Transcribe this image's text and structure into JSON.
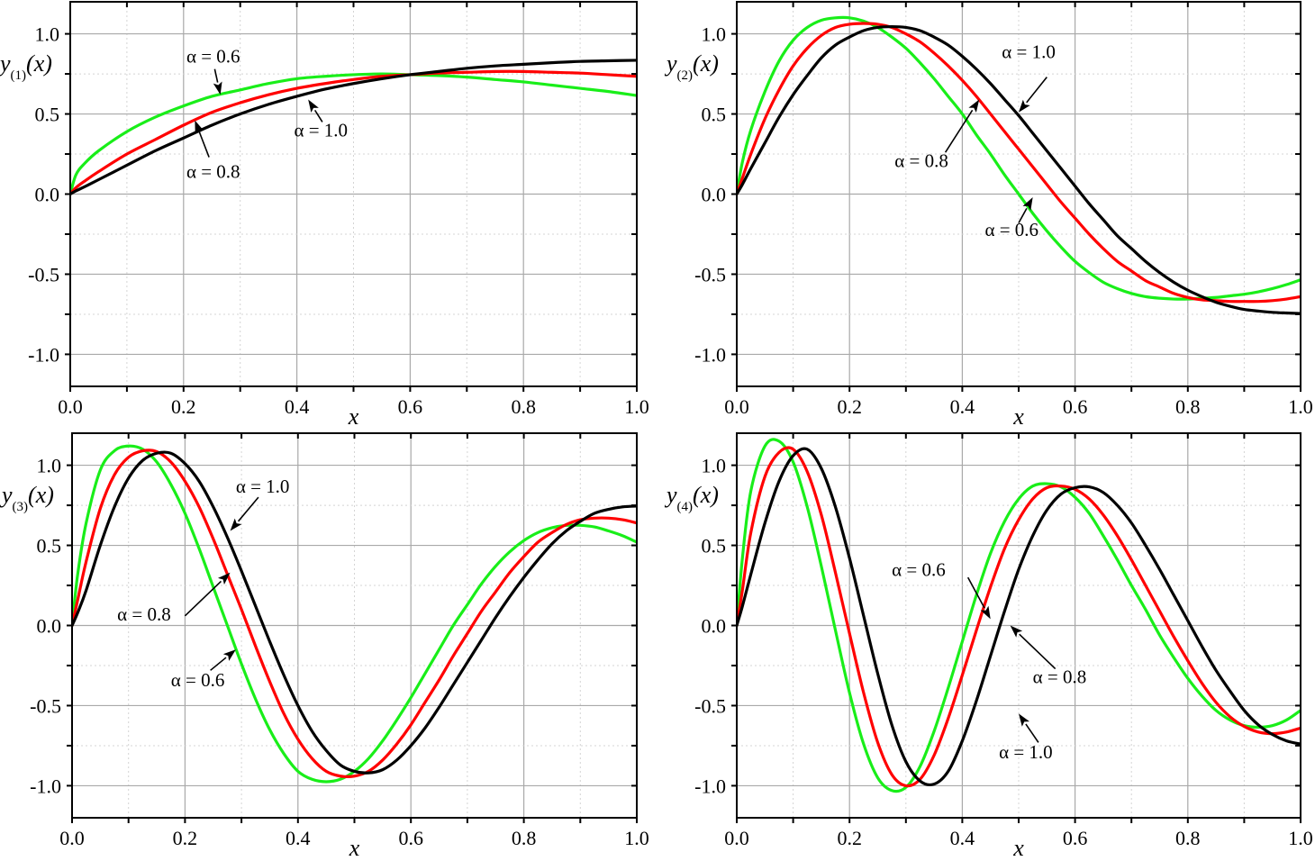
{
  "figure": {
    "series_colors": {
      "alpha_0.6": "#19ee19",
      "alpha_0.8": "#ff0000",
      "alpha_1.0": "#000000"
    },
    "grid_colors": {
      "major": "#a9a9a9",
      "minor": "#d4d4d4"
    }
  },
  "chart_data": [
    {
      "id": "panel1",
      "type": "line",
      "title": "",
      "ylabel": "y(1)(x)",
      "ylabel_main": "y",
      "ylabel_sub": "(1)",
      "ylabel_tail": "(x)",
      "xlabel": "x",
      "xlim": [
        0.0,
        1.0
      ],
      "ylim": [
        -1.2,
        1.2
      ],
      "xticks": [
        "0.0",
        "0.2",
        "0.4",
        "0.6",
        "0.8",
        "1.0"
      ],
      "yticks": [
        "1.0",
        "0.5",
        "0.0",
        "-0.5",
        "-1.0"
      ],
      "grid": true,
      "x": [
        0,
        0.01,
        0.025,
        0.05,
        0.1,
        0.15,
        0.2,
        0.25,
        0.3,
        0.35,
        0.4,
        0.45,
        0.5,
        0.55,
        0.6,
        0.65,
        0.7,
        0.75,
        0.8,
        0.85,
        0.9,
        0.95,
        1.0
      ],
      "series": [
        {
          "name": "α = 0.6",
          "color": "#19ee19",
          "values": [
            0,
            0.12,
            0.19,
            0.27,
            0.39,
            0.48,
            0.55,
            0.61,
            0.65,
            0.69,
            0.72,
            0.735,
            0.745,
            0.75,
            0.745,
            0.74,
            0.73,
            0.715,
            0.7,
            0.68,
            0.66,
            0.64,
            0.615
          ]
        },
        {
          "name": "α = 0.8",
          "color": "#ff0000",
          "values": [
            0,
            0.04,
            0.08,
            0.14,
            0.25,
            0.34,
            0.43,
            0.51,
            0.57,
            0.62,
            0.66,
            0.69,
            0.715,
            0.735,
            0.745,
            0.755,
            0.76,
            0.765,
            0.765,
            0.76,
            0.755,
            0.745,
            0.735
          ]
        },
        {
          "name": "α = 1.0",
          "color": "#000000",
          "values": [
            0,
            0.02,
            0.045,
            0.09,
            0.18,
            0.27,
            0.35,
            0.43,
            0.5,
            0.56,
            0.61,
            0.655,
            0.69,
            0.72,
            0.745,
            0.765,
            0.785,
            0.8,
            0.81,
            0.82,
            0.828,
            0.832,
            0.835
          ]
        }
      ],
      "annotations": [
        {
          "text": "α = 0.6",
          "label_x": 0.205,
          "label_y": 0.82,
          "arrow_from": [
            0.255,
            0.78
          ],
          "arrow_to": [
            0.265,
            0.62
          ]
        },
        {
          "text": "α = 0.8",
          "label_x": 0.205,
          "label_y": 0.1,
          "arrow_from": [
            0.245,
            0.23
          ],
          "arrow_to": [
            0.22,
            0.46
          ]
        },
        {
          "text": "α = 1.0",
          "label_x": 0.395,
          "label_y": 0.36,
          "arrow_from": [
            0.445,
            0.45
          ],
          "arrow_to": [
            0.42,
            0.59
          ]
        }
      ]
    },
    {
      "id": "panel2",
      "type": "line",
      "title": "",
      "ylabel": "y(2)(x)",
      "ylabel_main": "y",
      "ylabel_sub": "(2)",
      "ylabel_tail": "(x)",
      "xlabel": "x",
      "xlim": [
        0.0,
        1.0
      ],
      "ylim": [
        -1.2,
        1.2
      ],
      "xticks": [
        "0.0",
        "0.2",
        "0.4",
        "0.6",
        "0.8",
        "1.0"
      ],
      "yticks": [
        "1.0",
        "0.5",
        "0.0",
        "-0.5",
        "-1.0"
      ],
      "grid": true,
      "x": [
        0,
        0.01,
        0.025,
        0.05,
        0.075,
        0.1,
        0.125,
        0.15,
        0.175,
        0.2,
        0.225,
        0.25,
        0.275,
        0.3,
        0.325,
        0.35,
        0.375,
        0.4,
        0.425,
        0.45,
        0.475,
        0.5,
        0.525,
        0.55,
        0.575,
        0.6,
        0.625,
        0.65,
        0.675,
        0.7,
        0.725,
        0.75,
        0.775,
        0.8,
        0.825,
        0.85,
        0.875,
        0.9,
        0.925,
        0.95,
        0.975,
        1.0
      ],
      "series": [
        {
          "name": "α = 0.6",
          "color": "#19ee19",
          "values": [
            0,
            0.2,
            0.4,
            0.64,
            0.83,
            0.96,
            1.04,
            1.085,
            1.1,
            1.1,
            1.08,
            1.04,
            0.98,
            0.91,
            0.82,
            0.72,
            0.61,
            0.5,
            0.37,
            0.25,
            0.12,
            0.0,
            -0.12,
            -0.23,
            -0.33,
            -0.42,
            -0.49,
            -0.55,
            -0.59,
            -0.62,
            -0.64,
            -0.65,
            -0.655,
            -0.655,
            -0.65,
            -0.645,
            -0.635,
            -0.625,
            -0.61,
            -0.59,
            -0.565,
            -0.535
          ]
        },
        {
          "name": "α = 0.8",
          "color": "#ff0000",
          "values": [
            0,
            0.1,
            0.25,
            0.47,
            0.65,
            0.8,
            0.91,
            0.99,
            1.04,
            1.06,
            1.065,
            1.06,
            1.04,
            1.0,
            0.95,
            0.88,
            0.8,
            0.71,
            0.61,
            0.5,
            0.39,
            0.28,
            0.17,
            0.06,
            -0.05,
            -0.15,
            -0.25,
            -0.34,
            -0.42,
            -0.48,
            -0.54,
            -0.58,
            -0.62,
            -0.645,
            -0.66,
            -0.665,
            -0.67,
            -0.67,
            -0.67,
            -0.665,
            -0.655,
            -0.64
          ]
        },
        {
          "name": "α = 1.0",
          "color": "#000000",
          "values": [
            0,
            0.06,
            0.16,
            0.32,
            0.48,
            0.62,
            0.74,
            0.85,
            0.93,
            0.98,
            1.02,
            1.04,
            1.045,
            1.04,
            1.02,
            0.98,
            0.93,
            0.86,
            0.78,
            0.69,
            0.59,
            0.49,
            0.38,
            0.27,
            0.16,
            0.05,
            -0.06,
            -0.16,
            -0.26,
            -0.34,
            -0.42,
            -0.49,
            -0.55,
            -0.6,
            -0.64,
            -0.675,
            -0.7,
            -0.72,
            -0.73,
            -0.738,
            -0.742,
            -0.745
          ]
        }
      ],
      "annotations": [
        {
          "text": "α = 1.0",
          "label_x": 0.47,
          "label_y": 0.85,
          "arrow_from": [
            0.55,
            0.73
          ],
          "arrow_to": [
            0.5,
            0.51
          ]
        },
        {
          "text": "α = 0.8",
          "label_x": 0.28,
          "label_y": 0.17,
          "arrow_from": [
            0.37,
            0.26
          ],
          "arrow_to": [
            0.43,
            0.59
          ]
        },
        {
          "text": "α = 0.6",
          "label_x": 0.44,
          "label_y": -0.26,
          "arrow_from": [
            0.5,
            -0.18
          ],
          "arrow_to": [
            0.525,
            -0.02
          ]
        }
      ]
    },
    {
      "id": "panel3",
      "type": "line",
      "title": "",
      "ylabel": "y(3)(x)",
      "ylabel_main": "y",
      "ylabel_sub": "(3)",
      "ylabel_tail": "(x)",
      "xlabel": "x",
      "xlim": [
        0.0,
        1.0
      ],
      "ylim": [
        -1.2,
        1.2
      ],
      "xticks": [
        "0.0",
        "0.2",
        "0.4",
        "0.6",
        "0.8",
        "1.0"
      ],
      "yticks": [
        "1.0",
        "0.5",
        "0.0",
        "-0.5",
        "-1.0"
      ],
      "grid": true,
      "x": [
        0,
        0.01,
        0.025,
        0.05,
        0.075,
        0.1,
        0.125,
        0.15,
        0.175,
        0.2,
        0.225,
        0.25,
        0.275,
        0.3,
        0.325,
        0.35,
        0.375,
        0.4,
        0.425,
        0.45,
        0.475,
        0.5,
        0.525,
        0.55,
        0.575,
        0.6,
        0.625,
        0.65,
        0.675,
        0.7,
        0.725,
        0.75,
        0.775,
        0.8,
        0.825,
        0.85,
        0.875,
        0.9,
        0.925,
        0.95,
        0.975,
        1.0
      ],
      "series": [
        {
          "name": "α = 0.6",
          "color": "#19ee19",
          "values": [
            0,
            0.32,
            0.64,
            0.97,
            1.09,
            1.12,
            1.1,
            1.02,
            0.88,
            0.7,
            0.48,
            0.24,
            0.0,
            -0.24,
            -0.46,
            -0.65,
            -0.8,
            -0.91,
            -0.96,
            -0.975,
            -0.96,
            -0.91,
            -0.83,
            -0.72,
            -0.59,
            -0.45,
            -0.3,
            -0.15,
            0.0,
            0.13,
            0.26,
            0.37,
            0.46,
            0.53,
            0.58,
            0.61,
            0.625,
            0.625,
            0.615,
            0.59,
            0.56,
            0.52
          ]
        },
        {
          "name": "α = 0.8",
          "color": "#ff0000",
          "values": [
            0,
            0.16,
            0.4,
            0.73,
            0.94,
            1.05,
            1.09,
            1.085,
            1.02,
            0.9,
            0.74,
            0.54,
            0.32,
            0.1,
            -0.13,
            -0.35,
            -0.55,
            -0.71,
            -0.83,
            -0.91,
            -0.94,
            -0.94,
            -0.91,
            -0.84,
            -0.74,
            -0.62,
            -0.48,
            -0.34,
            -0.19,
            -0.05,
            0.09,
            0.21,
            0.33,
            0.43,
            0.52,
            0.58,
            0.63,
            0.66,
            0.67,
            0.67,
            0.66,
            0.64
          ]
        },
        {
          "name": "α = 1.0",
          "color": "#000000",
          "values": [
            0,
            0.08,
            0.22,
            0.5,
            0.74,
            0.92,
            1.03,
            1.075,
            1.075,
            1.01,
            0.9,
            0.74,
            0.55,
            0.34,
            0.12,
            -0.1,
            -0.31,
            -0.5,
            -0.66,
            -0.78,
            -0.87,
            -0.91,
            -0.92,
            -0.9,
            -0.84,
            -0.75,
            -0.64,
            -0.51,
            -0.37,
            -0.23,
            -0.09,
            0.05,
            0.18,
            0.3,
            0.41,
            0.51,
            0.59,
            0.65,
            0.7,
            0.725,
            0.74,
            0.745
          ]
        }
      ],
      "annotations": [
        {
          "text": "α = 1.0",
          "label_x": 0.29,
          "label_y": 0.83,
          "arrow_from": [
            0.33,
            0.8
          ],
          "arrow_to": [
            0.28,
            0.59
          ]
        },
        {
          "text": "α = 0.8",
          "label_x": 0.08,
          "label_y": 0.03,
          "arrow_from": [
            0.2,
            0.06
          ],
          "arrow_to": [
            0.28,
            0.33
          ]
        },
        {
          "text": "α = 0.6",
          "label_x": 0.175,
          "label_y": -0.38,
          "arrow_from": [
            0.245,
            -0.28
          ],
          "arrow_to": [
            0.29,
            -0.15
          ]
        }
      ]
    },
    {
      "id": "panel4",
      "type": "line",
      "title": "",
      "ylabel": "y(4)(x)",
      "ylabel_main": "y",
      "ylabel_sub": "(4)",
      "ylabel_tail": "(x)",
      "xlabel": "x",
      "xlim": [
        0.0,
        1.0
      ],
      "ylim": [
        -1.2,
        1.2
      ],
      "xticks": [
        "0.0",
        "0.2",
        "0.4",
        "0.6",
        "0.8",
        "1.0"
      ],
      "yticks": [
        "1.0",
        "0.5",
        "0.0",
        "-0.5",
        "-1.0"
      ],
      "grid": true,
      "x": [
        0,
        0.01,
        0.025,
        0.05,
        0.075,
        0.1,
        0.125,
        0.15,
        0.175,
        0.2,
        0.225,
        0.25,
        0.275,
        0.3,
        0.325,
        0.35,
        0.375,
        0.4,
        0.425,
        0.45,
        0.475,
        0.5,
        0.525,
        0.55,
        0.575,
        0.6,
        0.625,
        0.65,
        0.675,
        0.7,
        0.725,
        0.75,
        0.775,
        0.8,
        0.825,
        0.85,
        0.875,
        0.9,
        0.925,
        0.95,
        0.975,
        1.0
      ],
      "series": [
        {
          "name": "α = 0.6",
          "color": "#19ee19",
          "values": [
            0,
            0.42,
            0.84,
            1.12,
            1.15,
            1.02,
            0.74,
            0.37,
            -0.03,
            -0.42,
            -0.74,
            -0.95,
            -1.03,
            -1.01,
            -0.88,
            -0.66,
            -0.39,
            -0.1,
            0.19,
            0.45,
            0.65,
            0.79,
            0.87,
            0.885,
            0.865,
            0.8,
            0.7,
            0.56,
            0.41,
            0.25,
            0.1,
            -0.06,
            -0.2,
            -0.33,
            -0.44,
            -0.53,
            -0.59,
            -0.625,
            -0.635,
            -0.625,
            -0.59,
            -0.53
          ]
        },
        {
          "name": "α = 0.8",
          "color": "#ff0000",
          "values": [
            0,
            0.22,
            0.58,
            0.93,
            1.08,
            1.1,
            0.96,
            0.69,
            0.33,
            -0.05,
            -0.42,
            -0.73,
            -0.93,
            -1.0,
            -0.96,
            -0.81,
            -0.58,
            -0.31,
            -0.03,
            0.24,
            0.48,
            0.66,
            0.79,
            0.86,
            0.87,
            0.85,
            0.79,
            0.69,
            0.56,
            0.41,
            0.25,
            0.09,
            -0.07,
            -0.22,
            -0.36,
            -0.48,
            -0.57,
            -0.63,
            -0.665,
            -0.675,
            -0.665,
            -0.64
          ]
        },
        {
          "name": "α = 1.0",
          "color": "#000000",
          "values": [
            0,
            0.12,
            0.32,
            0.64,
            0.9,
            1.06,
            1.1,
            0.98,
            0.74,
            0.42,
            0.06,
            -0.3,
            -0.62,
            -0.85,
            -0.97,
            -0.99,
            -0.91,
            -0.72,
            -0.47,
            -0.19,
            0.09,
            0.35,
            0.56,
            0.72,
            0.82,
            0.86,
            0.865,
            0.83,
            0.75,
            0.64,
            0.5,
            0.35,
            0.19,
            0.03,
            -0.13,
            -0.28,
            -0.41,
            -0.53,
            -0.62,
            -0.68,
            -0.72,
            -0.74
          ]
        }
      ],
      "annotations": [
        {
          "text": "α = 0.6",
          "label_x": 0.275,
          "label_y": 0.31,
          "arrow_from": [
            0.41,
            0.3
          ],
          "arrow_to": [
            0.45,
            0.04
          ]
        },
        {
          "text": "α = 0.8",
          "label_x": 0.525,
          "label_y": -0.36,
          "arrow_from": [
            0.565,
            -0.27
          ],
          "arrow_to": [
            0.485,
            0.0
          ]
        },
        {
          "text": "α = 1.0",
          "label_x": 0.465,
          "label_y": -0.83,
          "arrow_from": [
            0.535,
            -0.73
          ],
          "arrow_to": [
            0.5,
            -0.55
          ]
        }
      ]
    }
  ]
}
